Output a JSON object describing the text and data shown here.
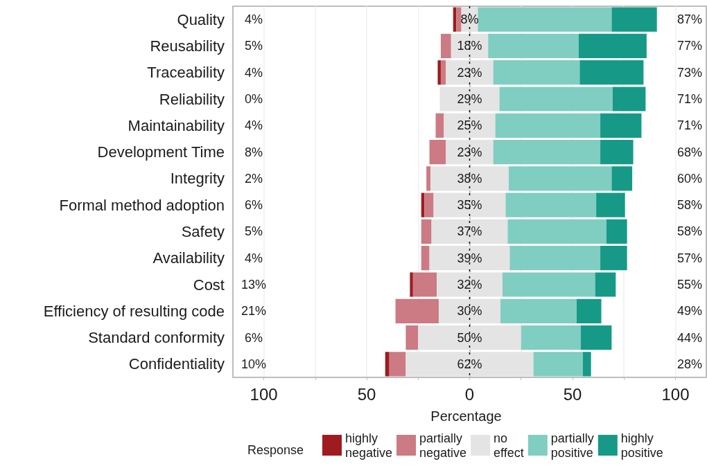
{
  "chart_data": {
    "type": "bar",
    "orientation": "horizontal",
    "xlabel": "Percentage",
    "legend_title": "Response",
    "legend": "bottom",
    "grid": true,
    "categories": [
      "Quality",
      "Reusability",
      "Traceability",
      "Reliability",
      "Maintainability",
      "Development Time",
      "Integrity",
      "Formal method adoption",
      "Safety",
      "Availability",
      "Cost",
      "Efficiency of resulting code",
      "Standard conformity",
      "Confidentiality"
    ],
    "xlim": [
      -115,
      115
    ],
    "xticks": [
      {
        "value": -100,
        "label": "100"
      },
      {
        "value": -75,
        "label": null
      },
      {
        "value": -50,
        "label": "50"
      },
      {
        "value": -25,
        "label": null
      },
      0,
      {
        "value": 25,
        "label": null
      },
      50,
      {
        "value": 75,
        "label": null
      },
      100
    ],
    "series": [
      {
        "name": "highly negative",
        "color": "#9e1b20",
        "values": [
          1.5,
          null,
          1.5,
          null,
          null,
          null,
          null,
          1.5,
          null,
          null,
          1.5,
          null,
          null,
          2
        ],
        "base": [
          -8,
          null,
          -15.5,
          null,
          null,
          null,
          null,
          -23.5,
          null,
          null,
          -29,
          null,
          null,
          -41
        ]
      },
      {
        "name": "partially negative",
        "color": "#cc7a83",
        "values": [
          2.5,
          5,
          2.5,
          null,
          4,
          8,
          2,
          4.5,
          5,
          4,
          11.5,
          21,
          6,
          8
        ],
        "base": [
          -6.5,
          -14,
          -14,
          null,
          -16.5,
          -19.5,
          -21,
          -22,
          -23.5,
          -23.5,
          -27.5,
          -36,
          -31,
          -39
        ]
      },
      {
        "name": "no effect",
        "color": "#e3e4e3",
        "values": [
          8,
          18,
          23,
          29,
          25,
          23,
          38,
          35,
          37,
          39,
          32,
          30,
          50,
          62
        ],
        "base": [
          -4,
          -9,
          -11.5,
          -14.5,
          -12.5,
          -11.5,
          -19,
          -17.5,
          -18.5,
          -19.5,
          -16,
          -15,
          -25,
          -31
        ],
        "value_labels": [
          "8%",
          "18%",
          "23%",
          "29%",
          "25%",
          "23%",
          "38%",
          "35%",
          "37%",
          "39%",
          "32%",
          "30%",
          "50%",
          "62%"
        ]
      },
      {
        "name": "partially positive",
        "color": "#80cdc1",
        "values": [
          65,
          44,
          42,
          55,
          51,
          52,
          50,
          44,
          48,
          44,
          45,
          37,
          29,
          24
        ],
        "base": [
          4,
          9,
          11.5,
          14.5,
          12.5,
          11.5,
          19,
          17.5,
          18.5,
          19.5,
          16,
          15,
          25,
          31
        ]
      },
      {
        "name": "highly positive",
        "color": "#169a87",
        "values": [
          22,
          33,
          31,
          16,
          20,
          16,
          10,
          14,
          10,
          13,
          10,
          12,
          15,
          4
        ],
        "base": [
          69,
          53,
          53.5,
          69.5,
          63.5,
          63.5,
          69,
          61.5,
          66.5,
          63.5,
          61,
          52,
          54,
          55
        ]
      }
    ],
    "ref_lines": [
      {
        "axis": "x",
        "value": 0,
        "color": "#000000",
        "line_style": "dashed"
      }
    ],
    "annotations": [
      "4%",
      "5%",
      "4%",
      "0%",
      "4%",
      "8%",
      "2%",
      "6%",
      "5%",
      "4%",
      "13%",
      "21%",
      "6%",
      "10%",
      "87%",
      "77%",
      "73%",
      "71%",
      "71%",
      "68%",
      "60%",
      "58%",
      "58%",
      "57%",
      "55%",
      "49%",
      "44%",
      "28%"
    ]
  }
}
